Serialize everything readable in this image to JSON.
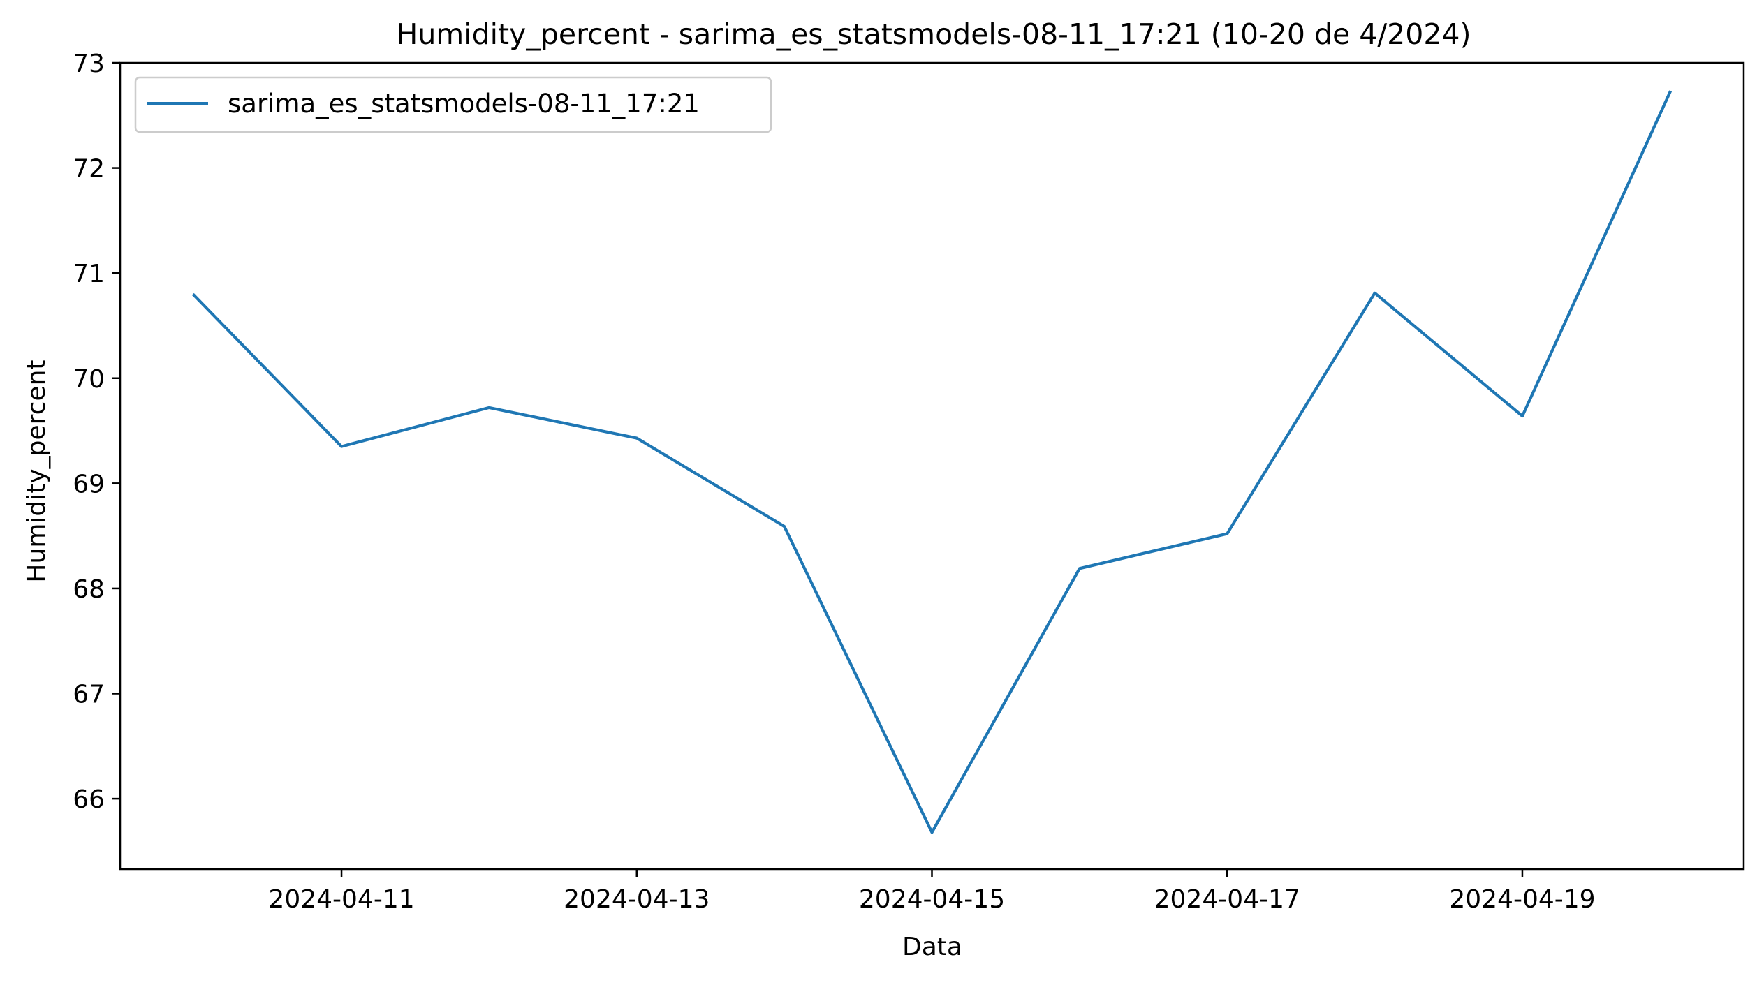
{
  "chart_data": {
    "type": "line",
    "title": "Humidity_percent - sarima_es_statsmodels-08-11_17:21 (10-20 de 4/2024)",
    "xlabel": "Data",
    "ylabel": "Humidity_percent",
    "x": [
      "2024-04-10",
      "2024-04-11",
      "2024-04-12",
      "2024-04-13",
      "2024-04-14",
      "2024-04-15",
      "2024-04-16",
      "2024-04-17",
      "2024-04-18",
      "2024-04-19",
      "2024-04-20"
    ],
    "series": [
      {
        "name": "sarima_es_statsmodels-08-11_17:21",
        "color": "#1f77b4",
        "values": [
          70.79,
          69.35,
          69.72,
          69.43,
          68.59,
          65.68,
          68.19,
          68.52,
          70.81,
          69.64,
          72.72
        ]
      }
    ],
    "xlim": [
      "2024-04-09T12:00",
      "2024-04-20T12:00"
    ],
    "ylim": [
      65.33,
      73.0
    ],
    "x_ticks": [
      "2024-04-11",
      "2024-04-13",
      "2024-04-15",
      "2024-04-17",
      "2024-04-19"
    ],
    "y_ticks": [
      66,
      67,
      68,
      69,
      70,
      71,
      72,
      73
    ],
    "legend_position": "upper-left",
    "grid": false
  }
}
